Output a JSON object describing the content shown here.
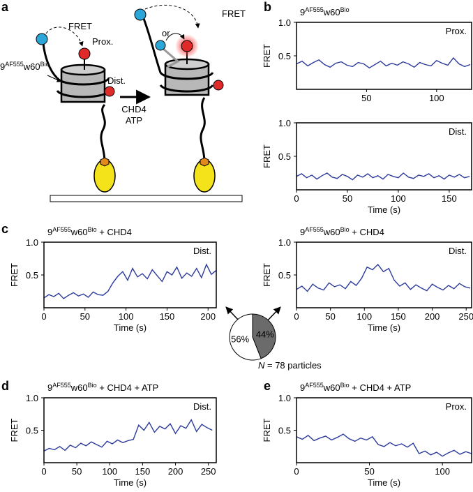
{
  "panel_labels": [
    "a",
    "b",
    "c",
    "d",
    "e"
  ],
  "diagram": {
    "fret_left": "FRET",
    "prox": "Prox.",
    "dist": "Dist.",
    "construct": [
      {
        "text": "9"
      },
      {
        "text": "AF555",
        "sup": true
      },
      {
        "text": "w60"
      },
      {
        "text": "Bio",
        "sup": true
      }
    ],
    "remodeler": "CHD4",
    "cofactor": "ATP",
    "or": "or",
    "fret_right": "FRET"
  },
  "chart_data": [
    {
      "type": "line",
      "title": [
        {
          "text": "9"
        },
        {
          "text": "AF555",
          "sup": true
        },
        {
          "text": "w60"
        },
        {
          "text": "Bio",
          "sup": true
        }
      ],
      "annotation": "Prox.",
      "ylabel": "FRET",
      "color": "#2b3a9b",
      "xlim": [
        0,
        125
      ],
      "ylim": [
        0,
        1
      ],
      "xticks": [
        50,
        100
      ],
      "yticks": [
        0.5,
        {
          "value": 1,
          "label": "1.0"
        }
      ],
      "x": [
        0,
        4,
        8,
        12,
        16,
        20,
        24,
        28,
        32,
        36,
        40,
        44,
        48,
        52,
        56,
        60,
        64,
        68,
        72,
        76,
        80,
        84,
        88,
        92,
        96,
        100,
        104,
        108,
        112,
        116,
        120,
        124
      ],
      "values": [
        0.38,
        0.42,
        0.35,
        0.4,
        0.44,
        0.37,
        0.33,
        0.39,
        0.41,
        0.36,
        0.34,
        0.4,
        0.38,
        0.32,
        0.37,
        0.42,
        0.35,
        0.39,
        0.36,
        0.41,
        0.38,
        0.33,
        0.4,
        0.37,
        0.35,
        0.43,
        0.39,
        0.36,
        0.47,
        0.38,
        0.34,
        0.37
      ]
    },
    {
      "type": "line",
      "annotation": "Dist.",
      "ylabel": "FRET",
      "xlabel": "Time (s)",
      "color": "#2b3a9b",
      "xlim": [
        0,
        172
      ],
      "ylim": [
        0,
        1
      ],
      "xticks": [
        0,
        50,
        100,
        150
      ],
      "yticks": [
        0.5,
        {
          "value": 1,
          "label": "1.0"
        }
      ],
      "x": [
        0,
        5,
        10,
        15,
        20,
        25,
        30,
        35,
        40,
        45,
        50,
        55,
        60,
        65,
        70,
        75,
        80,
        85,
        90,
        95,
        100,
        105,
        110,
        115,
        120,
        125,
        130,
        135,
        140,
        145,
        150,
        155,
        160,
        165,
        170
      ],
      "values": [
        0.2,
        0.24,
        0.18,
        0.22,
        0.16,
        0.21,
        0.25,
        0.19,
        0.17,
        0.23,
        0.2,
        0.15,
        0.22,
        0.19,
        0.24,
        0.18,
        0.21,
        0.16,
        0.23,
        0.2,
        0.18,
        0.25,
        0.19,
        0.17,
        0.22,
        0.2,
        0.24,
        0.18,
        0.21,
        0.16,
        0.22,
        0.19,
        0.23,
        0.18,
        0.2
      ]
    },
    {
      "type": "line",
      "title": [
        {
          "text": "9"
        },
        {
          "text": "AF555",
          "sup": true
        },
        {
          "text": "w60"
        },
        {
          "text": "Bio",
          "sup": true
        },
        {
          "text": " + CHD4"
        }
      ],
      "annotation": "Dist.",
      "ylabel": "FRET",
      "xlabel": "Time (s)",
      "color": "#2b3a9b",
      "xlim": [
        0,
        210
      ],
      "ylim": [
        0,
        1
      ],
      "xticks": [
        0,
        50,
        100,
        150,
        200
      ],
      "yticks": [
        0.5,
        {
          "value": 1,
          "label": "1.0"
        }
      ],
      "x": [
        0,
        6,
        12,
        18,
        24,
        30,
        36,
        42,
        48,
        54,
        60,
        66,
        72,
        78,
        84,
        90,
        96,
        102,
        108,
        114,
        120,
        126,
        132,
        138,
        144,
        150,
        156,
        162,
        168,
        174,
        180,
        186,
        192,
        198,
        204,
        210
      ],
      "values": [
        0.15,
        0.2,
        0.17,
        0.22,
        0.14,
        0.19,
        0.23,
        0.18,
        0.21,
        0.16,
        0.24,
        0.2,
        0.19,
        0.25,
        0.38,
        0.48,
        0.55,
        0.42,
        0.6,
        0.47,
        0.52,
        0.44,
        0.58,
        0.49,
        0.4,
        0.55,
        0.5,
        0.62,
        0.45,
        0.53,
        0.48,
        0.6,
        0.46,
        0.66,
        0.51,
        0.57
      ]
    },
    {
      "type": "line",
      "title": [
        {
          "text": "9"
        },
        {
          "text": "AF555",
          "sup": true
        },
        {
          "text": "w60"
        },
        {
          "text": "Bio",
          "sup": true
        },
        {
          "text": " + CHD4"
        }
      ],
      "annotation": "Dist.",
      "ylabel": "FRET",
      "xlabel": "Time (s)",
      "color": "#2b3a9b",
      "xlim": [
        0,
        258
      ],
      "ylim": [
        0,
        1
      ],
      "xticks": [
        0,
        50,
        100,
        150,
        200,
        250
      ],
      "yticks": [
        0.5,
        {
          "value": 1,
          "label": "1.0"
        }
      ],
      "x": [
        0,
        8,
        16,
        24,
        32,
        40,
        48,
        56,
        64,
        72,
        80,
        88,
        96,
        104,
        112,
        120,
        128,
        136,
        144,
        152,
        160,
        168,
        176,
        184,
        192,
        200,
        208,
        216,
        224,
        232,
        240,
        248,
        256
      ],
      "values": [
        0.28,
        0.33,
        0.25,
        0.36,
        0.3,
        0.27,
        0.38,
        0.32,
        0.35,
        0.29,
        0.4,
        0.34,
        0.45,
        0.62,
        0.58,
        0.66,
        0.55,
        0.6,
        0.42,
        0.33,
        0.38,
        0.28,
        0.35,
        0.3,
        0.26,
        0.36,
        0.31,
        0.27,
        0.34,
        0.29,
        0.37,
        0.32,
        0.3
      ]
    },
    {
      "type": "line",
      "title": [
        {
          "text": "9"
        },
        {
          "text": "AF555",
          "sup": true
        },
        {
          "text": "w60"
        },
        {
          "text": "Bio",
          "sup": true
        },
        {
          "text": " + CHD4 + ATP"
        }
      ],
      "annotation": "Dist.",
      "ylabel": "FRET",
      "xlabel": "Time (s)",
      "color": "#2b3a9b",
      "xlim": [
        0,
        262
      ],
      "ylim": [
        0,
        1
      ],
      "xticks": [
        0,
        50,
        100,
        150,
        200,
        250
      ],
      "yticks": [
        0.5,
        {
          "value": 1,
          "label": "1.0"
        }
      ],
      "x": [
        0,
        8,
        16,
        24,
        32,
        40,
        48,
        56,
        64,
        72,
        80,
        88,
        96,
        104,
        112,
        120,
        128,
        136,
        144,
        152,
        160,
        168,
        176,
        184,
        192,
        200,
        208,
        216,
        224,
        232,
        240,
        248,
        256
      ],
      "values": [
        0.18,
        0.22,
        0.2,
        0.25,
        0.19,
        0.27,
        0.23,
        0.3,
        0.26,
        0.32,
        0.28,
        0.24,
        0.33,
        0.29,
        0.35,
        0.31,
        0.34,
        0.36,
        0.58,
        0.5,
        0.62,
        0.47,
        0.56,
        0.52,
        0.6,
        0.45,
        0.57,
        0.53,
        0.66,
        0.48,
        0.59,
        0.54,
        0.5
      ]
    },
    {
      "type": "line",
      "title": [
        {
          "text": "9"
        },
        {
          "text": "AF555",
          "sup": true
        },
        {
          "text": "w60"
        },
        {
          "text": "Bio",
          "sup": true
        },
        {
          "text": " + CHD4 + ATP"
        }
      ],
      "annotation": "Prox.",
      "ylabel": "FRET",
      "xlabel": "Time (s)",
      "color": "#2b3a9b",
      "xlim": [
        0,
        120
      ],
      "ylim": [
        0,
        1
      ],
      "xticks": [
        0,
        50,
        100
      ],
      "yticks": [
        0.5,
        {
          "value": 1,
          "label": "1.0"
        }
      ],
      "x": [
        0,
        4,
        8,
        12,
        16,
        20,
        24,
        28,
        32,
        36,
        40,
        44,
        48,
        52,
        56,
        60,
        64,
        68,
        72,
        76,
        80,
        84,
        88,
        92,
        96,
        100,
        104,
        108,
        112,
        116,
        120
      ],
      "values": [
        0.4,
        0.36,
        0.42,
        0.34,
        0.38,
        0.41,
        0.35,
        0.39,
        0.44,
        0.37,
        0.33,
        0.38,
        0.35,
        0.4,
        0.28,
        0.25,
        0.31,
        0.26,
        0.29,
        0.24,
        0.3,
        0.14,
        0.18,
        0.12,
        0.16,
        0.1,
        0.15,
        0.19,
        0.13,
        0.17,
        0.14
      ]
    },
    {
      "type": "pie",
      "values": [
        44,
        56
      ],
      "value_labels": [
        "44%",
        "56%"
      ],
      "colors": [
        "#6b6b6b",
        "#ffffff"
      ],
      "annotation": [
        {
          "text": "N",
          "italic": true
        },
        {
          "text": " = 78 particles"
        }
      ]
    }
  ]
}
